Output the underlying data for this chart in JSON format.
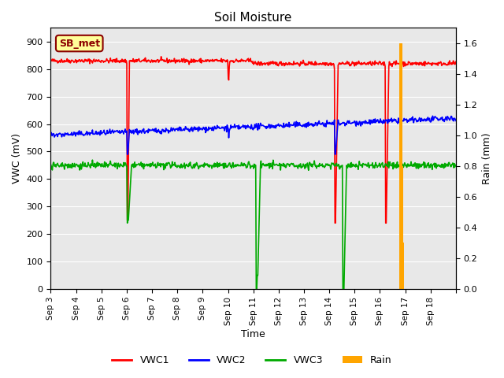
{
  "title": "Soil Moisture",
  "xlabel": "Time",
  "ylabel_left": "VWC (mV)",
  "ylabel_right": "Rain (mm)",
  "x_tick_labels": [
    "Sep 3",
    "Sep 4",
    "Sep 5",
    "Sep 6",
    "Sep 7",
    "Sep 8",
    "Sep 9",
    "Sep 10",
    "Sep 11",
    "Sep 12",
    "Sep 13",
    "Sep 14",
    "Sep 15",
    "Sep 16",
    "Sep 17",
    "Sep 18",
    ""
  ],
  "ylim_left": [
    0,
    950
  ],
  "ylim_right": [
    0.0,
    1.7
  ],
  "yticks_left": [
    0,
    100,
    200,
    300,
    400,
    500,
    600,
    700,
    800,
    900
  ],
  "yticks_right": [
    0.0,
    0.2,
    0.4,
    0.6,
    0.8,
    1.0,
    1.2,
    1.4,
    1.6
  ],
  "background_color": "#e8e8e8",
  "annotation_text": "SB_met",
  "annotation_color": "#8B0000",
  "annotation_bg": "#FFFF99",
  "annotation_border": "#8B0000",
  "vwc1_color": "#FF0000",
  "vwc2_color": "#0000FF",
  "vwc3_color": "#00AA00",
  "rain_color": "#FFA500",
  "vwc1_base": 830,
  "vwc2_base": 580,
  "vwc3_base": 450,
  "n_days": 16,
  "points_per_day": 48
}
